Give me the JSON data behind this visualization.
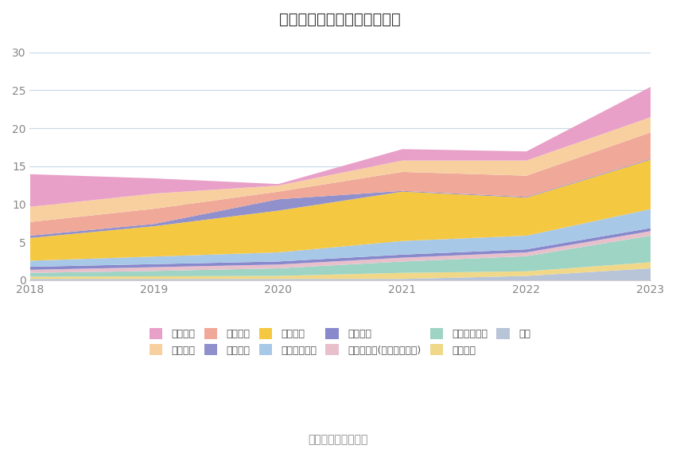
{
  "title": "历年主要负债堆积图（亿元）",
  "years": [
    2018,
    2019,
    2020,
    2021,
    2022,
    2023
  ],
  "series": [
    {
      "name": "其它",
      "color": "#b8c4d8",
      "values": [
        0.2,
        0.2,
        0.2,
        0.2,
        0.6,
        1.6
      ]
    },
    {
      "name": "预计负债",
      "color": "#f0d888",
      "values": [
        0.3,
        0.35,
        0.4,
        0.8,
        0.6,
        0.8
      ]
    },
    {
      "name": "其他流动负债",
      "color": "#9ed4c4",
      "values": [
        0.5,
        0.7,
        1.0,
        1.5,
        2.0,
        3.5
      ]
    },
    {
      "name": "其他应付款(含利息和股利)",
      "color": "#e8c0cc",
      "values": [
        0.4,
        0.5,
        0.5,
        0.5,
        0.5,
        0.6
      ]
    },
    {
      "name": "应交税费",
      "color": "#8888cc",
      "values": [
        0.4,
        0.4,
        0.4,
        0.4,
        0.4,
        0.4
      ]
    },
    {
      "name": "应付职工薄酬",
      "color": "#a8c8e8",
      "values": [
        0.8,
        1.0,
        1.2,
        1.8,
        1.8,
        2.5
      ]
    },
    {
      "name": "合同负债",
      "color": "#f5c842",
      "values": [
        3.0,
        4.0,
        5.5,
        6.5,
        5.0,
        6.5
      ]
    },
    {
      "name": "预收款项",
      "color": "#9090cc",
      "values": [
        0.3,
        0.3,
        1.5,
        0.1,
        0.1,
        0.1
      ]
    },
    {
      "name": "应付账款",
      "color": "#f0a898",
      "values": [
        1.8,
        2.0,
        1.0,
        2.5,
        2.8,
        3.5
      ]
    },
    {
      "name": "应付票据",
      "color": "#f8d0a0",
      "values": [
        2.0,
        2.0,
        0.8,
        1.5,
        2.0,
        2.0
      ]
    },
    {
      "name": "短期借款",
      "color": "#e8a0c8",
      "values": [
        4.3,
        2.0,
        0.2,
        1.5,
        1.2,
        4.0
      ]
    }
  ],
  "ylim": [
    0,
    32
  ],
  "yticks": [
    0,
    5,
    10,
    15,
    20,
    25,
    30
  ],
  "background_color": "#ffffff",
  "grid_color": "#c8d8e8",
  "title_fontsize": 14,
  "tick_fontsize": 10,
  "legend_fontsize": 9,
  "source_text": "数据来源：恒生聚源"
}
